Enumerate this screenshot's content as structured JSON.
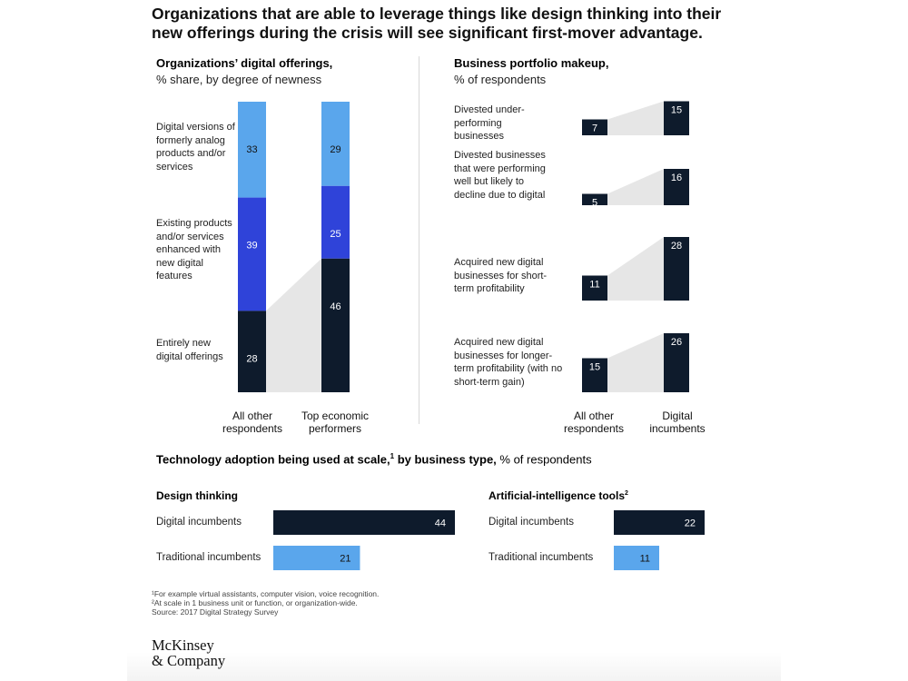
{
  "headline": "Organizations that are able to leverage things like design thinking into their new offerings during the crisis will see significant first-mover advantage.",
  "left_panel": {
    "title": "Organizations’ digital offerings,",
    "subtitle": "% share, by degree of newness",
    "segment_labels": [
      "Digital versions of formerly analog products and/or services",
      "Existing products and/or services enhanced with new digital features",
      "Entirely new digital offerings"
    ],
    "x_labels": [
      "All other respondents",
      "Top economic performers"
    ]
  },
  "right_panel": {
    "title": "Business portfolio makeup,",
    "subtitle": "% of respondents",
    "row_labels": [
      "Divested under-performing businesses",
      "Divested businesses that were performing well but likely to decline due to digital",
      "Acquired new digital businesses for short-term profitability",
      "Acquired new digital businesses for longer-term profitability (with no short-term gain)"
    ],
    "x_labels": [
      "All other respondents",
      "Digital incumbents"
    ]
  },
  "bottom_panel": {
    "title_bold": "Technology adoption being used at scale,",
    "title_sup": "1",
    "title_bold2": " by business type,",
    "title_rest": " % of respondents",
    "groups": [
      {
        "title": "Design thinking",
        "title_sup": ""
      },
      {
        "title": "Artificial-intelligence tools",
        "title_sup": "2"
      }
    ],
    "row_labels": [
      "Digital incumbents",
      "Traditional incumbents"
    ]
  },
  "footnotes": [
    "¹For example virtual assistants, computer vision, voice recognition.",
    "²At scale in 1 business unit or function, or organization-wide.",
    " Source: 2017 Digital Strategy Survey"
  ],
  "logo": [
    "McKinsey",
    "& Company"
  ],
  "colors": {
    "dark_navy": "#0e1b2c",
    "royal_blue": "#2f43d9",
    "light_blue": "#5aa6ec",
    "connector_gray": "#e6e6e6"
  },
  "chart_data": [
    {
      "type": "bar",
      "stacked": true,
      "categories": [
        "All other respondents",
        "Top economic performers"
      ],
      "series": [
        {
          "name": "Digital versions of formerly analog products and/or services",
          "values": [
            33,
            29
          ]
        },
        {
          "name": "Existing products and/or services enhanced with new digital features",
          "values": [
            39,
            25
          ]
        },
        {
          "name": "Entirely new digital offerings",
          "values": [
            28,
            46
          ]
        }
      ],
      "title": "Organizations’ digital offerings,",
      "subtitle": "% share, by degree of newness",
      "ylim": [
        0,
        100
      ]
    },
    {
      "type": "bar",
      "categories": [
        "Divested under-performing businesses",
        "Divested businesses that were performing well but likely to decline due to digital",
        "Acquired new digital businesses for short-term profitability",
        "Acquired new digital businesses for longer-term profitability (with no short-term gain)"
      ],
      "series": [
        {
          "name": "All other respondents",
          "values": [
            7,
            5,
            11,
            15
          ]
        },
        {
          "name": "Digital incumbents",
          "values": [
            15,
            16,
            28,
            26
          ]
        }
      ],
      "title": "Business portfolio makeup,",
      "subtitle": "% of respondents"
    },
    {
      "type": "bar",
      "orientation": "horizontal",
      "title": "Design thinking",
      "categories": [
        "Digital incumbents",
        "Traditional incumbents"
      ],
      "values": [
        44,
        21
      ]
    },
    {
      "type": "bar",
      "orientation": "horizontal",
      "title": "Artificial-intelligence tools",
      "categories": [
        "Digital incumbents",
        "Traditional incumbents"
      ],
      "values": [
        22,
        11
      ]
    }
  ]
}
